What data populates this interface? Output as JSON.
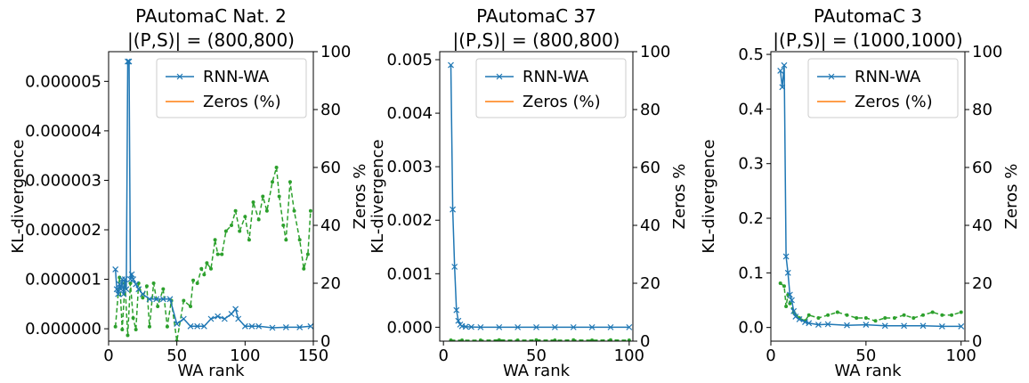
{
  "colors": {
    "rnn": "#1f77b4",
    "zeros_legend": "#ff7f0e",
    "zeros_line": "#2ca02c"
  },
  "chart_data": [
    {
      "type": "line",
      "title": "PAutomaC Nat. 2",
      "subtitle": "|(P,S)| = (800,800)",
      "xlabel": "WA rank",
      "ylabel": "KL-divergence",
      "ylabel_right": "Zeros %",
      "xlim": [
        0,
        150
      ],
      "ylim": [
        -2.5e-07,
        5.6e-06
      ],
      "ylim_right": [
        0,
        100
      ],
      "xticks": [
        0,
        50,
        100,
        150
      ],
      "xtick_labels": [
        "0",
        "50",
        "100",
        "150"
      ],
      "yticks": [
        0,
        1e-06,
        2e-06,
        3e-06,
        4e-06,
        5e-06
      ],
      "ytick_labels": [
        "0.000000",
        "0.000001",
        "0.000002",
        "0.000003",
        "0.000004",
        "0.000005"
      ],
      "yticks_right": [
        0,
        20,
        40,
        60,
        80,
        100
      ],
      "ytick_labels_right": [
        "0",
        "20",
        "40",
        "60",
        "80",
        "100"
      ],
      "legend": {
        "position": "top-right",
        "entries": [
          "RNN-WA",
          "Zeros (%)"
        ]
      },
      "series": [
        {
          "name": "RNN-WA",
          "axis": "left",
          "x": [
            5,
            6,
            7,
            8,
            9,
            10,
            11,
            12,
            13,
            14,
            15,
            16,
            17,
            18,
            20,
            22,
            25,
            30,
            35,
            40,
            45,
            50,
            55,
            60,
            65,
            70,
            75,
            80,
            85,
            90,
            93,
            95,
            100,
            105,
            110,
            120,
            130,
            140,
            148
          ],
          "y": [
            1.2e-06,
            8e-07,
            7e-07,
            9e-07,
            8e-07,
            1e-06,
            7e-07,
            1e-06,
            8e-07,
            5.4e-06,
            5.4e-06,
            1e-06,
            1.1e-06,
            1e-06,
            9e-07,
            8e-07,
            7e-07,
            6e-07,
            6e-07,
            6e-07,
            6e-07,
            1e-07,
            2e-07,
            5e-08,
            5e-08,
            5e-08,
            2e-07,
            2.5e-07,
            2e-07,
            3e-07,
            4e-07,
            2e-07,
            5e-08,
            5e-08,
            5e-08,
            2e-08,
            3e-08,
            3e-08,
            5e-08
          ]
        },
        {
          "name": "Zeros (%)",
          "axis": "right",
          "x": [
            5,
            8,
            10,
            12,
            14,
            16,
            18,
            20,
            22,
            25,
            28,
            30,
            33,
            36,
            40,
            43,
            46,
            50,
            55,
            60,
            62,
            65,
            68,
            70,
            72,
            75,
            78,
            80,
            83,
            86,
            90,
            93,
            96,
            100,
            103,
            106,
            110,
            113,
            116,
            120,
            123,
            125,
            128,
            130,
            133,
            136,
            140,
            143,
            146,
            148
          ],
          "y": [
            5,
            22,
            4,
            20,
            2,
            20,
            8,
            4,
            20,
            15,
            19,
            5,
            20,
            12,
            18,
            5,
            14,
            0,
            14,
            12,
            21,
            20,
            25,
            23,
            27,
            25,
            35,
            30,
            30,
            38,
            40,
            45,
            38,
            43,
            35,
            48,
            42,
            50,
            45,
            55,
            60,
            50,
            40,
            35,
            55,
            45,
            35,
            25,
            30,
            45
          ]
        }
      ]
    },
    {
      "type": "line",
      "title": "PAutomaC 37",
      "subtitle": "|(P,S)| = (800,800)",
      "xlabel": "WA rank",
      "ylabel": "KL-divergence",
      "ylabel_right": "Zeros %",
      "xlim": [
        -2,
        102
      ],
      "ylim": [
        -0.00026,
        0.00515
      ],
      "ylim_right": [
        0,
        100
      ],
      "xticks": [
        0,
        50,
        100
      ],
      "xtick_labels": [
        "0",
        "50",
        "100"
      ],
      "yticks": [
        0,
        0.001,
        0.002,
        0.003,
        0.004,
        0.005
      ],
      "ytick_labels": [
        "0.000",
        "0.001",
        "0.002",
        "0.003",
        "0.004",
        "0.005"
      ],
      "yticks_right": [
        0,
        20,
        40,
        60,
        80,
        100
      ],
      "ytick_labels_right": [
        "0",
        "20",
        "40",
        "60",
        "80",
        "100"
      ],
      "legend": {
        "position": "top-right",
        "entries": [
          "RNN-WA",
          "Zeros (%)"
        ]
      },
      "series": [
        {
          "name": "RNN-WA",
          "axis": "left",
          "x": [
            4,
            5,
            6,
            7,
            8,
            9,
            10,
            12,
            15,
            20,
            30,
            40,
            50,
            60,
            70,
            80,
            90,
            100
          ],
          "y": [
            0.0049,
            0.0022,
            0.00113,
            0.00032,
            0.00012,
            5e-05,
            2e-05,
            1e-05,
            5e-06,
            0.0,
            0.0,
            0.0,
            0.0,
            0.0,
            0.0,
            0.0,
            0.0,
            0.0
          ]
        },
        {
          "name": "Zeros (%)",
          "axis": "right",
          "x": [
            4,
            10,
            20,
            30,
            40,
            50,
            60,
            70,
            80,
            90,
            100
          ],
          "y": [
            0.3,
            0.3,
            0.3,
            0.4,
            0.3,
            0.4,
            0.3,
            0.4,
            0.3,
            0.4,
            0.3
          ]
        }
      ]
    },
    {
      "type": "line",
      "title": "PAutomaC 3",
      "subtitle": "|(P,S)| = (1000,1000)",
      "xlabel": "WA rank",
      "ylabel": "KL-divergence",
      "ylabel_right": "Zeros %",
      "xlim": [
        0,
        102
      ],
      "ylim": [
        -0.025,
        0.505
      ],
      "ylim_right": [
        0,
        100
      ],
      "xticks": [
        0,
        50,
        100
      ],
      "xtick_labels": [
        "0",
        "50",
        "100"
      ],
      "yticks": [
        0,
        0.1,
        0.2,
        0.3,
        0.4,
        0.5
      ],
      "ytick_labels": [
        "0.0",
        "0.1",
        "0.2",
        "0.3",
        "0.4",
        "0.5"
      ],
      "yticks_right": [
        0,
        20,
        40,
        60,
        80,
        100
      ],
      "ytick_labels_right": [
        "0",
        "20",
        "40",
        "60",
        "80",
        "100"
      ],
      "legend": {
        "position": "top-right",
        "entries": [
          "RNN-WA",
          "Zeros (%)"
        ]
      },
      "series": [
        {
          "name": "RNN-WA",
          "axis": "left",
          "x": [
            5,
            6,
            7,
            8,
            9,
            10,
            11,
            12,
            13,
            15,
            18,
            20,
            25,
            30,
            40,
            50,
            60,
            70,
            80,
            90,
            100
          ],
          "y": [
            0.47,
            0.44,
            0.48,
            0.13,
            0.1,
            0.06,
            0.05,
            0.03,
            0.02,
            0.015,
            0.01,
            0.008,
            0.005,
            0.006,
            0.004,
            0.005,
            0.003,
            0.003,
            0.003,
            0.002,
            0.002
          ]
        },
        {
          "name": "Zeros (%)",
          "axis": "right",
          "x": [
            5,
            7,
            8,
            9,
            10,
            12,
            15,
            18,
            20,
            25,
            30,
            35,
            40,
            45,
            50,
            55,
            60,
            65,
            70,
            75,
            80,
            85,
            90,
            95,
            100
          ],
          "y": [
            20,
            19,
            12,
            16,
            13,
            10,
            8,
            7,
            9,
            8,
            9,
            10,
            9,
            8,
            8,
            7,
            8,
            8,
            9,
            8,
            9,
            10,
            9,
            9,
            10
          ]
        }
      ]
    }
  ]
}
